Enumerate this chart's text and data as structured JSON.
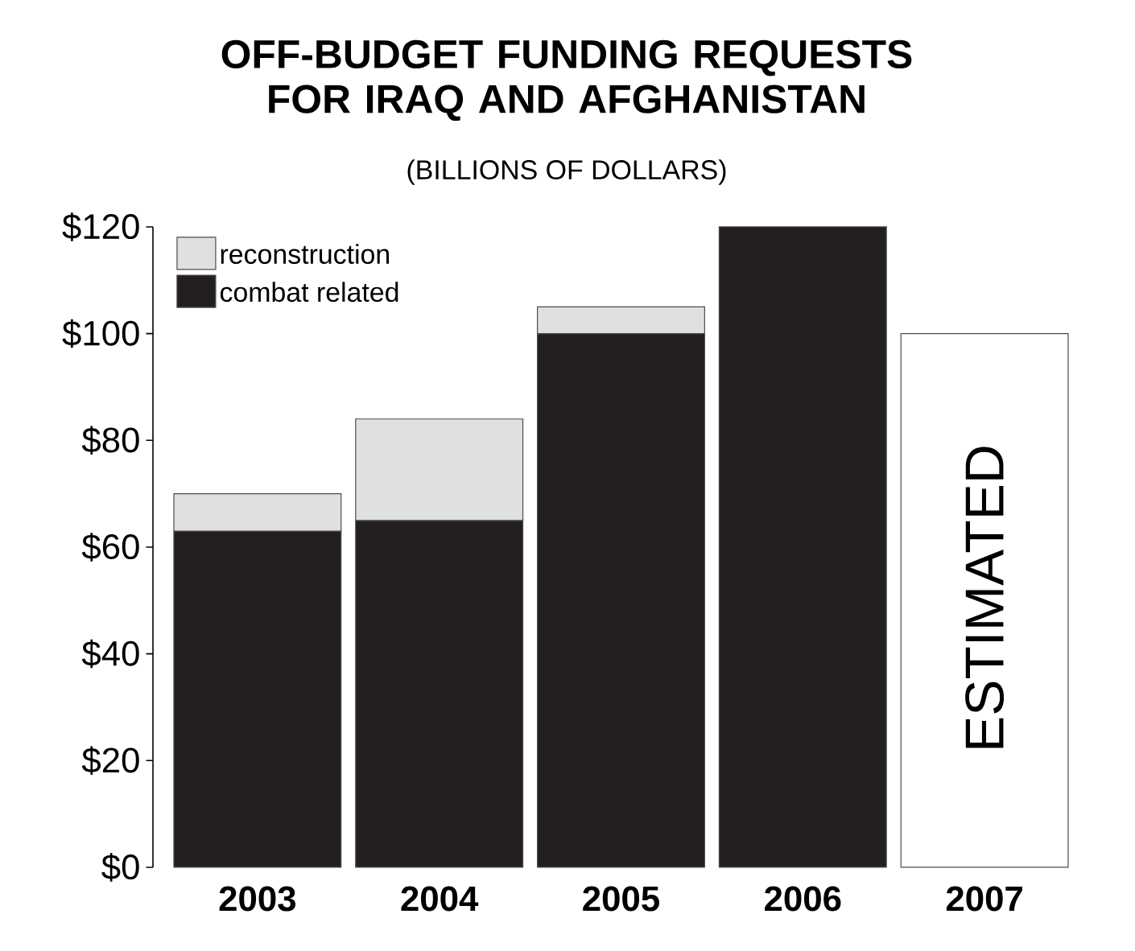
{
  "chart_data": {
    "type": "bar",
    "title": "OFF-BUDGET FUNDING REQUESTS FOR IRAQ AND AFGHANISTAN",
    "subtitle": "(BILLIONS OF DOLLARS)",
    "categories": [
      "2003",
      "2004",
      "2005",
      "2006",
      "2007"
    ],
    "stacked": true,
    "series": [
      {
        "name": "combat related",
        "color": "#231f20",
        "values": [
          63,
          65,
          100,
          120,
          null
        ]
      },
      {
        "name": "reconstruction",
        "color": "#dfe0e2",
        "values": [
          7,
          19,
          5,
          null,
          null
        ]
      },
      {
        "color": "#ffffff",
        "values": [
          null,
          null,
          null,
          null,
          100
        ]
      }
    ],
    "ylim": [
      0,
      120
    ],
    "yticks": [
      {
        "value": 0,
        "label": "$0"
      },
      {
        "value": 20,
        "label": "$20"
      },
      {
        "value": 40,
        "label": "$40"
      },
      {
        "value": 60,
        "label": "$60"
      },
      {
        "value": 80,
        "label": "$80"
      },
      {
        "value": 100,
        "label": "$100"
      },
      {
        "value": 120,
        "label": "$120"
      }
    ],
    "legend": "top left",
    "annotations": [
      "ESTIMATED"
    ]
  }
}
